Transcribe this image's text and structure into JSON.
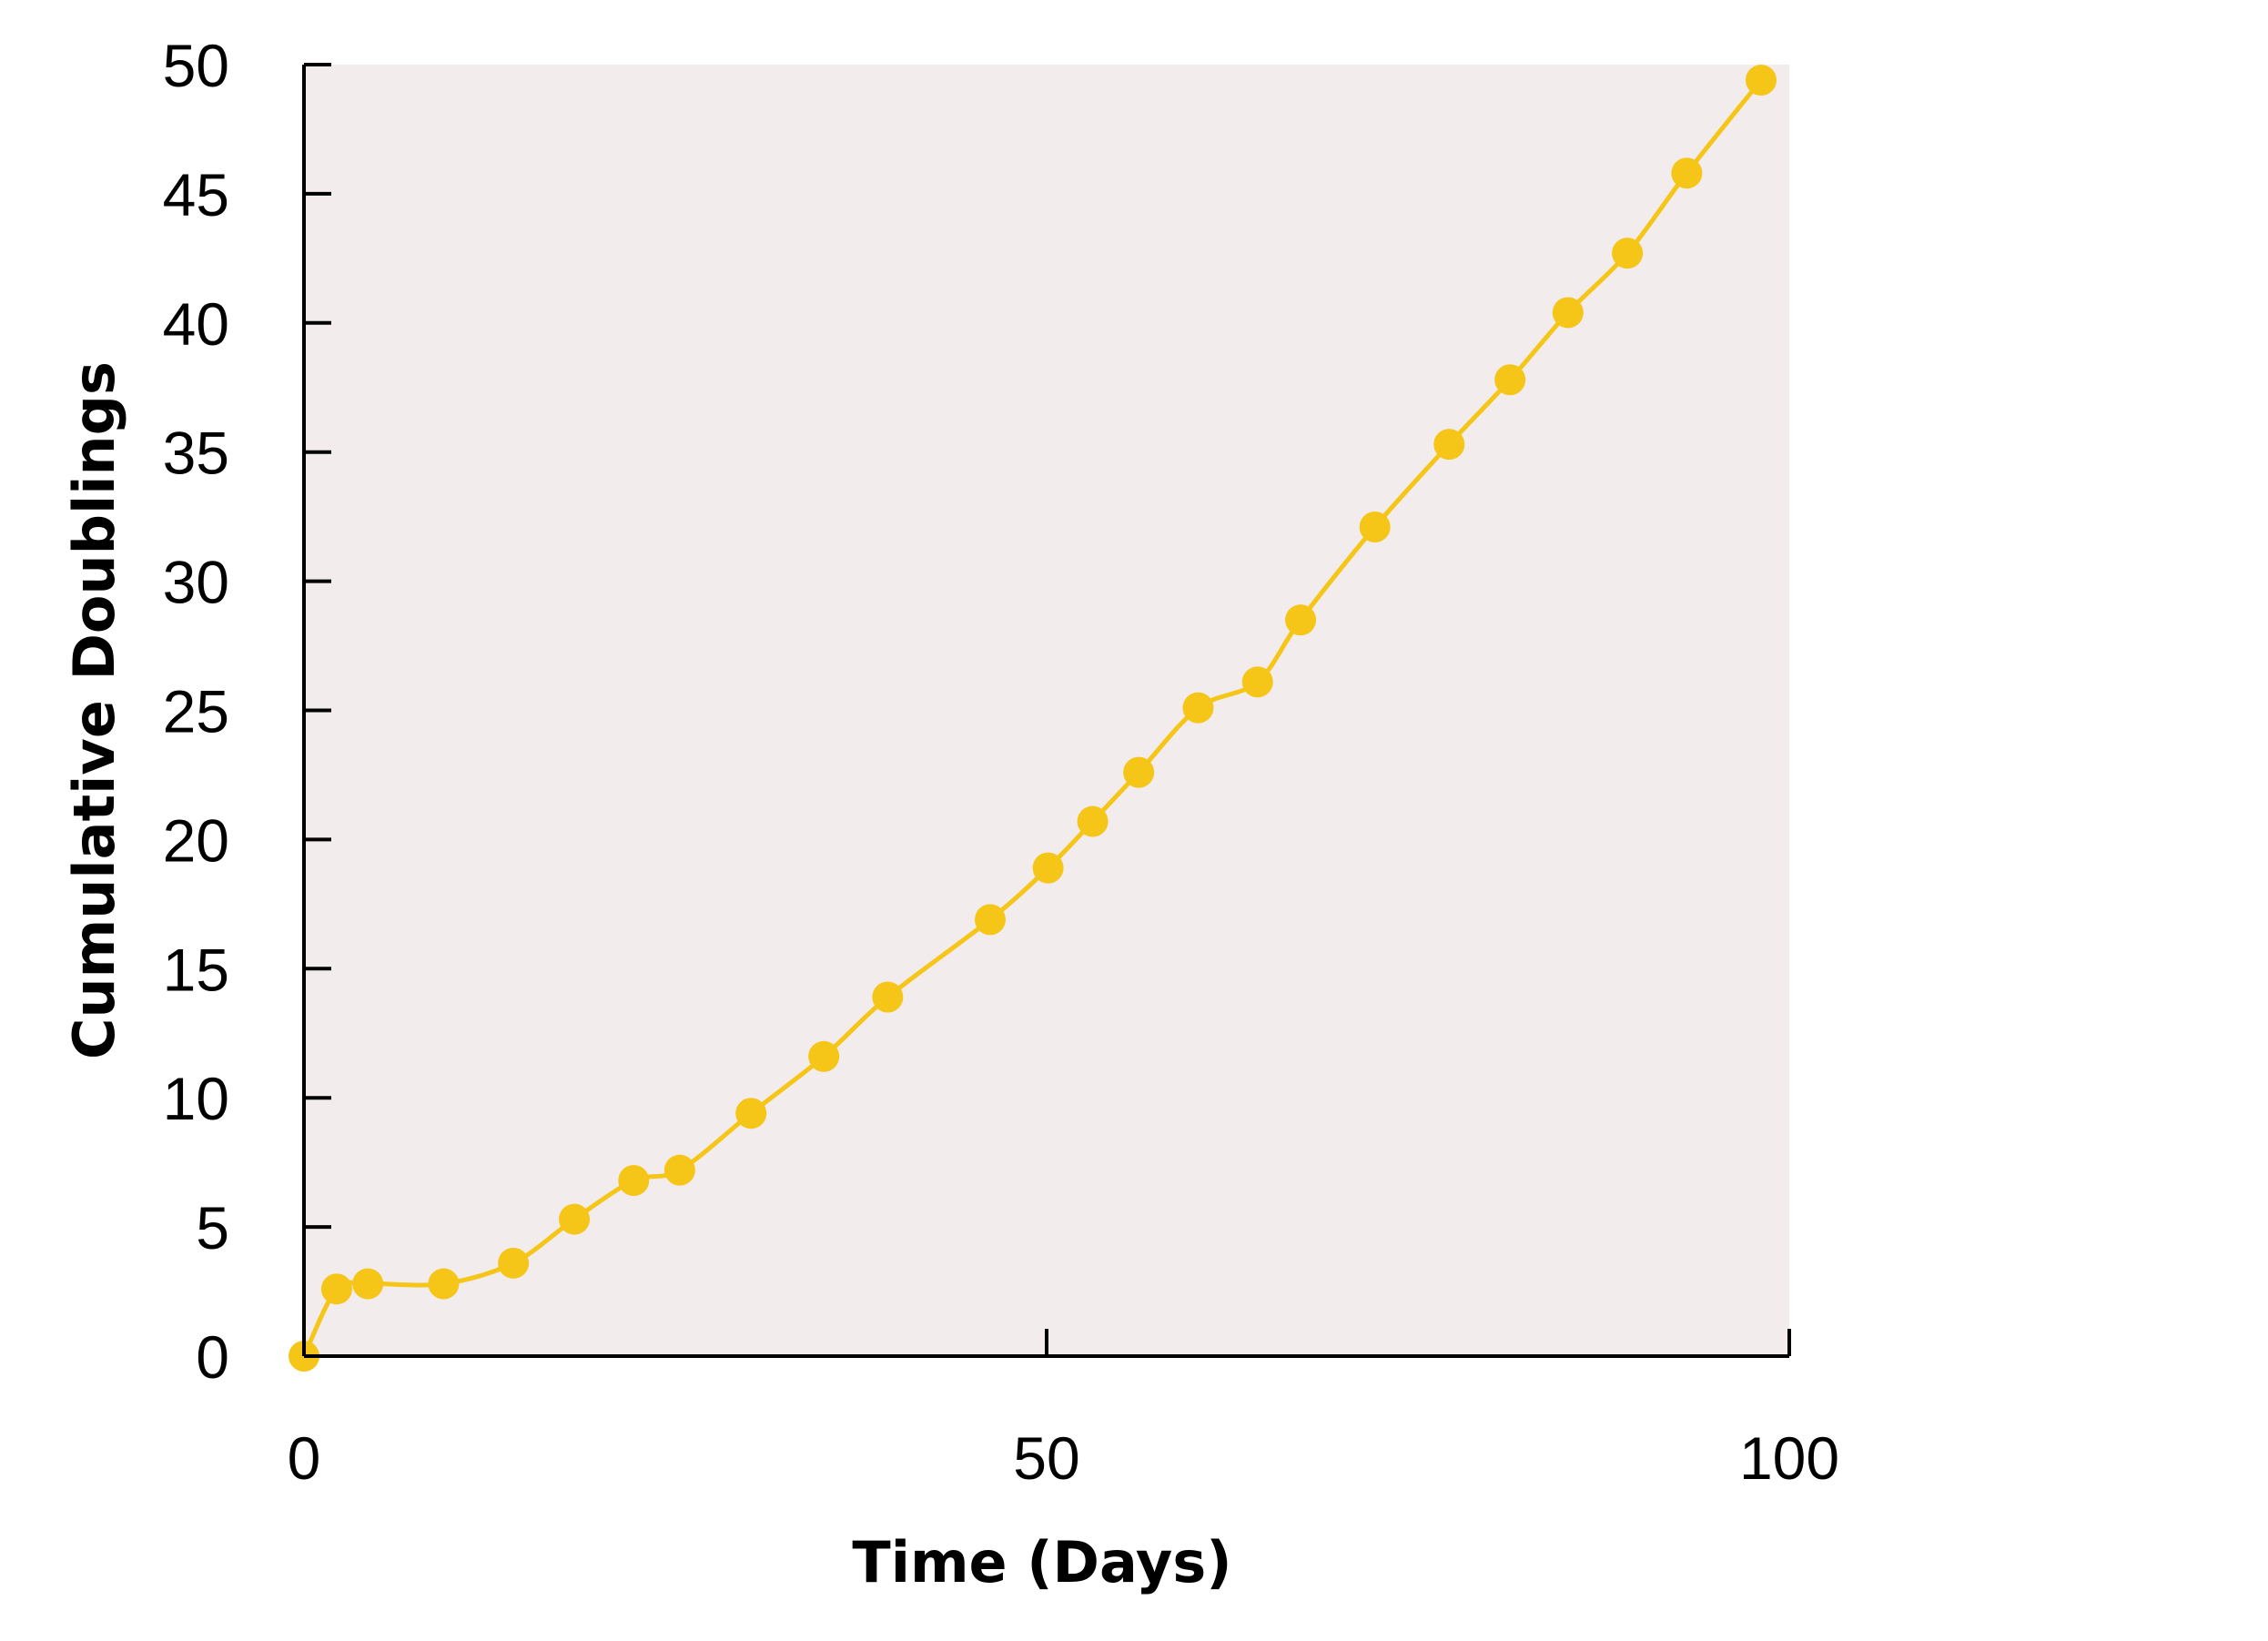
{
  "chart_data": {
    "type": "line",
    "title": "",
    "xlabel": "Time (Days)",
    "ylabel": "Cumulative Doublings",
    "xlim": [
      0,
      100
    ],
    "ylim": [
      0,
      50
    ],
    "x_ticks": [
      0,
      50,
      100
    ],
    "y_ticks": [
      0,
      5,
      10,
      15,
      20,
      25,
      30,
      35,
      40,
      45,
      50
    ],
    "grid": false,
    "legend": "none",
    "colors": {
      "plot_background": "#f2eced",
      "series": "#f5c518",
      "axis": "#000000"
    },
    "series": [
      {
        "x": [
          0,
          2.2,
          4.3,
          9.4,
          14.1,
          18.2,
          22.2,
          25.3,
          30.1,
          35,
          39.3,
          46.2,
          50.1,
          53.1,
          56.2,
          60.2,
          64.2,
          67.1,
          72.1,
          77.1,
          81.2,
          85.1,
          89.1,
          93.1,
          98.1
        ],
        "y": [
          0,
          2.6,
          2.8,
          2.8,
          3.6,
          5.3,
          6.8,
          7.2,
          9.4,
          11.6,
          13.9,
          16.9,
          18.9,
          20.7,
          22.6,
          25.1,
          26.1,
          28.5,
          32.1,
          35.3,
          37.8,
          40.4,
          42.7,
          45.8,
          49.4
        ]
      }
    ]
  }
}
